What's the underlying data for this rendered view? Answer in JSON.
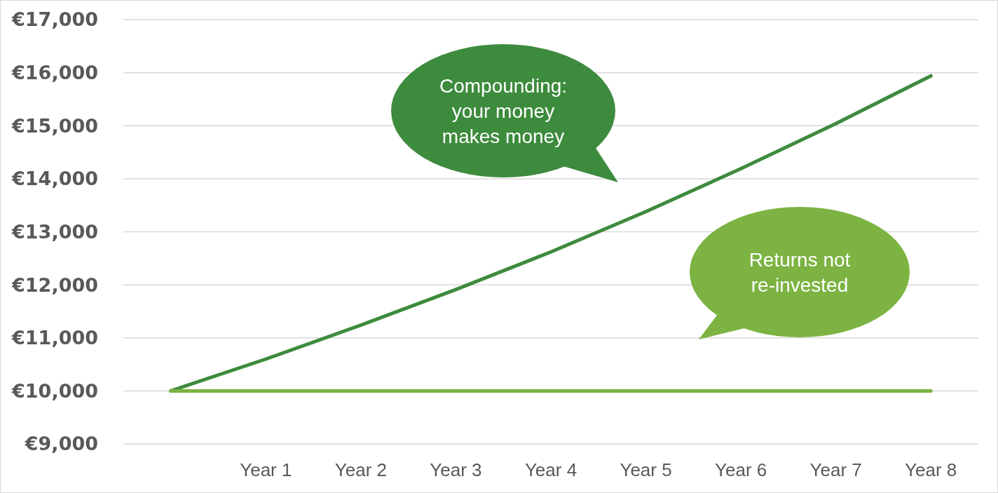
{
  "chart_data": {
    "type": "line",
    "categories": [
      null,
      "Year 1",
      "Year 2",
      "Year 3",
      "Year 4",
      "Year 5",
      "Year 6",
      "Year 7",
      "Year 8"
    ],
    "series": [
      {
        "color": "#3d8b3d",
        "values": [
          10000,
          10600,
          11240,
          11910,
          12620,
          13380,
          14190,
          15040,
          15940
        ]
      },
      {
        "color": "#7cb342",
        "values": [
          10000,
          10000,
          10000,
          10000,
          10000,
          10000,
          10000,
          10000,
          10000
        ]
      }
    ],
    "ylim": [
      9000,
      17000
    ],
    "yticks": [
      {
        "value": 9000,
        "label": "€9,000"
      },
      {
        "value": 10000,
        "label": "€10,000"
      },
      {
        "value": 11000,
        "label": "€11,000"
      },
      {
        "value": 12000,
        "label": "€12,000"
      },
      {
        "value": 13000,
        "label": "€13,000"
      },
      {
        "value": 14000,
        "label": "€14,000"
      },
      {
        "value": 15000,
        "label": "€15,000"
      },
      {
        "value": 16000,
        "label": "€16,000"
      },
      {
        "value": 17000,
        "label": "€17,000"
      }
    ],
    "grid": "y",
    "marker": "none",
    "line_style": "solid",
    "annotations": [
      "Compounding: your money makes money",
      "Returns not re-invested"
    ]
  }
}
